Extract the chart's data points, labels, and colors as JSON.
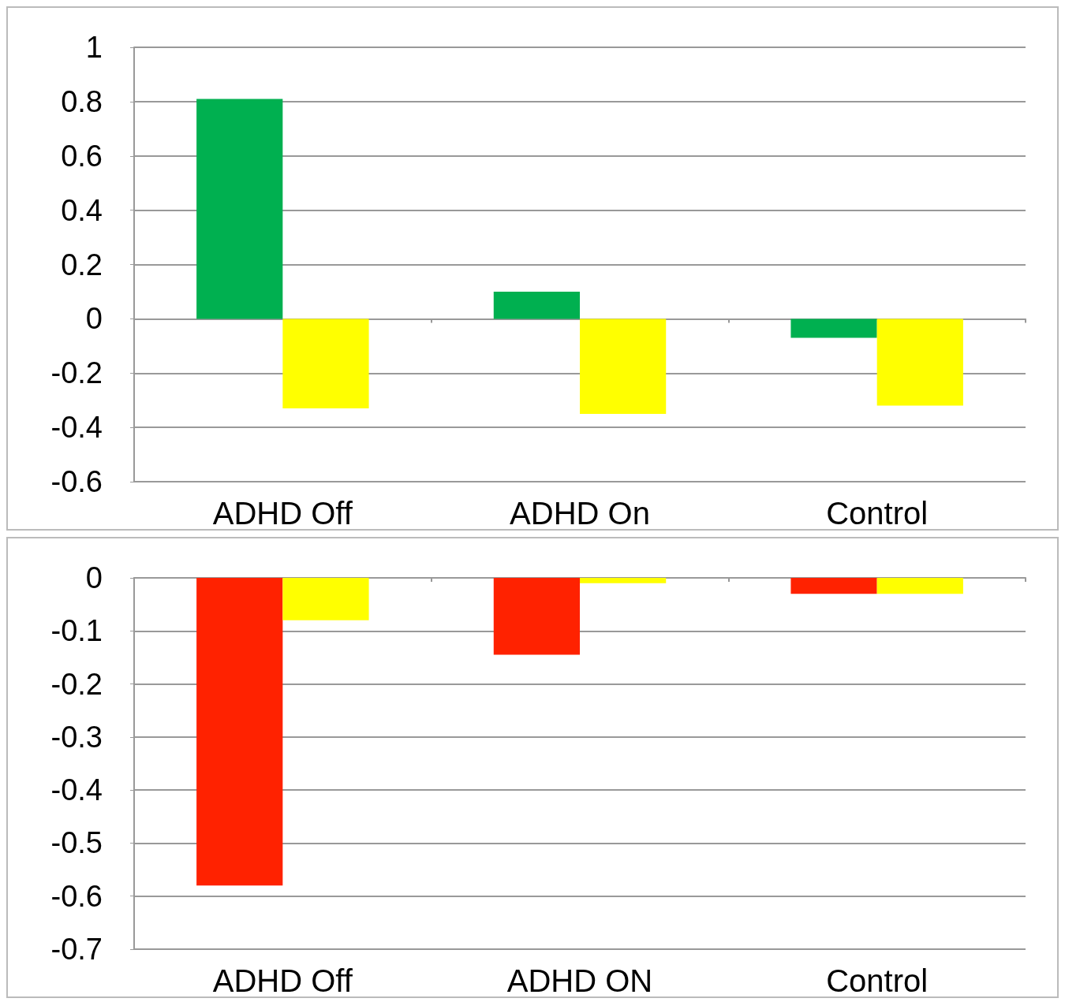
{
  "chart_data": [
    {
      "type": "bar",
      "categories": [
        "ADHD Off",
        "ADHD On",
        "Control"
      ],
      "series": [
        {
          "color": "#00b050",
          "values": [
            0.81,
            0.1,
            -0.07
          ]
        },
        {
          "color": "#ffff00",
          "values": [
            -0.33,
            -0.35,
            -0.32
          ]
        }
      ],
      "ylim": [
        -0.6,
        1
      ],
      "yticks": [
        -0.6,
        -0.4,
        -0.2,
        0,
        0.2,
        0.4,
        0.6,
        0.8,
        1
      ],
      "grid": "y"
    },
    {
      "type": "bar",
      "categories": [
        "ADHD Off",
        "ADHD ON",
        "Control"
      ],
      "series": [
        {
          "color": "#ff2200",
          "values": [
            -0.58,
            -0.145,
            -0.03
          ]
        },
        {
          "color": "#ffff00",
          "values": [
            -0.08,
            -0.01,
            -0.03
          ]
        }
      ],
      "ylim": [
        -0.7,
        0
      ],
      "yticks": [
        -0.7,
        -0.6,
        -0.5,
        -0.4,
        -0.3,
        -0.2,
        -0.1,
        0
      ],
      "grid": "y"
    }
  ]
}
